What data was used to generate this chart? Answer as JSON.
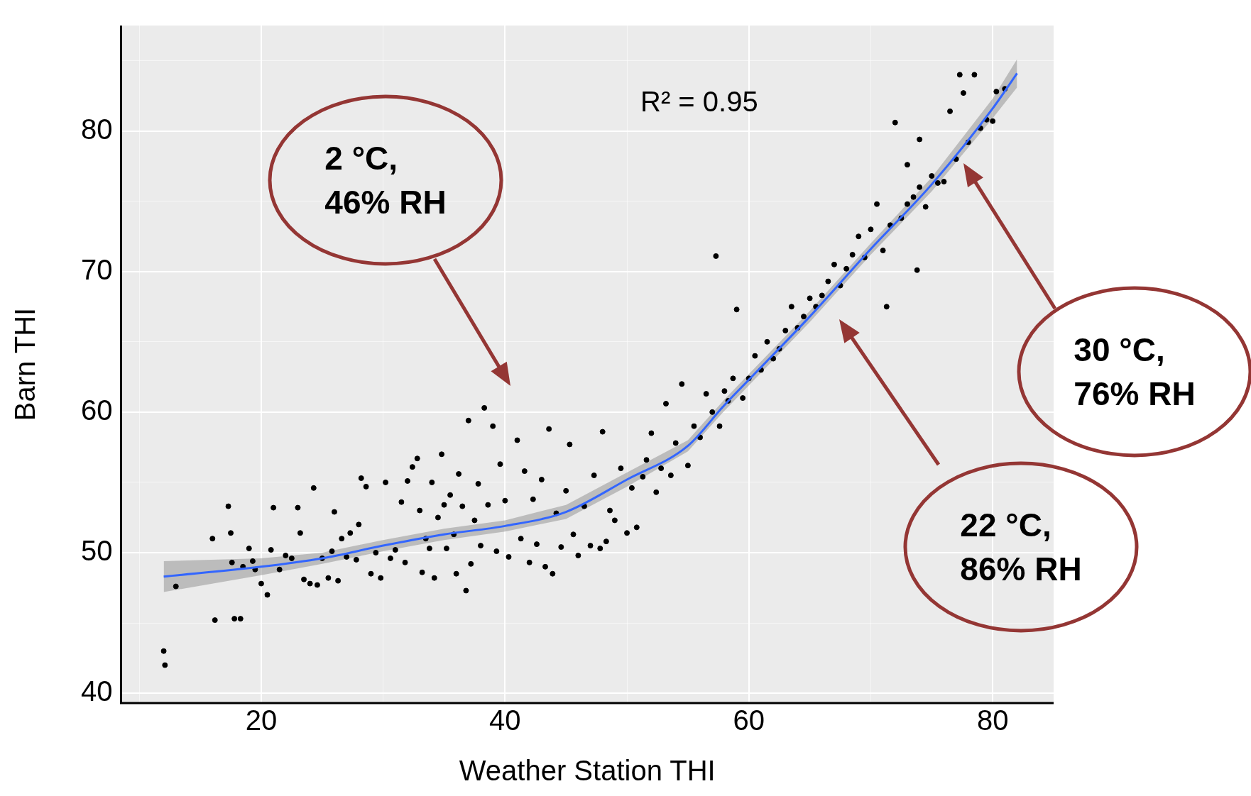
{
  "chart_data": {
    "type": "scatter",
    "xlabel": "Weather Station THI",
    "ylabel": "Barn THI",
    "xlim": [
      8.5,
      85
    ],
    "ylim": [
      39.3,
      87.5
    ],
    "xticks": [
      {
        "value": 10,
        "label": null
      },
      20,
      {
        "value": 30,
        "label": null
      },
      40,
      {
        "value": 50,
        "label": null
      },
      60,
      {
        "value": 70,
        "label": null
      },
      80
    ],
    "yticks": [
      40,
      {
        "value": 45,
        "label": null
      },
      50,
      {
        "value": 55,
        "label": null
      },
      60,
      {
        "value": 65,
        "label": null
      },
      70,
      {
        "value": 75,
        "label": null
      },
      80,
      {
        "value": 85,
        "label": null
      }
    ],
    "grid": true,
    "legend": false,
    "annotations": [
      "R² = 0.95",
      "2 °C,\n46% RH",
      "22 °C,\n86% RH",
      "30 °C,\n76% RH"
    ],
    "series": [
      {
        "marker": "circle",
        "color": "#000000",
        "x": [
          12,
          12.1,
          13,
          16,
          16.2,
          17.3,
          17.5,
          17.6,
          17.8,
          18.3,
          18.5,
          19,
          19.3,
          19.5,
          20,
          20.5,
          20.8,
          21,
          21.5,
          22,
          22.5,
          23,
          23.2,
          23.5,
          24,
          24.3,
          24.6,
          25,
          25.5,
          25.8,
          26,
          26.3,
          26.6,
          27,
          27.3,
          27.8,
          28,
          28.2,
          28.6,
          29,
          29.4,
          29.8,
          30.2,
          30.6,
          31,
          31.5,
          31.8,
          32,
          32.4,
          32.8,
          33,
          33.2,
          33.5,
          33.8,
          34,
          34.2,
          34.5,
          34.8,
          35,
          35.2,
          35.5,
          35.8,
          36,
          36.2,
          36.5,
          36.8,
          37,
          37.2,
          37.5,
          37.8,
          38,
          38.3,
          38.6,
          39,
          39.3,
          39.6,
          40,
          40.3,
          41,
          41.3,
          41.6,
          42,
          42.3,
          42.6,
          43,
          43.3,
          43.6,
          43.9,
          44.2,
          44.6,
          45,
          45.3,
          45.6,
          46,
          46.5,
          47,
          47.3,
          47.8,
          48,
          48.3,
          48.6,
          49,
          49.5,
          50,
          50.4,
          50.8,
          51.3,
          51.6,
          52,
          52.4,
          52.8,
          53.2,
          53.6,
          54,
          54.5,
          55,
          55.5,
          56,
          56.5,
          57,
          57.3,
          57.6,
          58,
          58.3,
          58.7,
          59,
          59.5,
          60,
          60.5,
          61,
          61.5,
          62,
          62.5,
          63,
          63.5,
          64,
          64.5,
          65,
          65.5,
          66,
          66.5,
          67,
          67.5,
          68,
          68.5,
          69,
          69.5,
          70,
          70.5,
          71,
          71.3,
          71.6,
          72,
          72.5,
          73,
          73.5,
          73.8,
          74,
          74.5,
          75,
          75.5,
          76,
          76.5,
          77,
          77.3,
          77.6,
          78,
          78.5,
          79,
          79.5,
          80,
          80.3,
          81,
          73,
          74
        ],
        "values": [
          43,
          42,
          47.6,
          51,
          45.2,
          53.3,
          51.4,
          49.3,
          45.3,
          45.3,
          49,
          50.3,
          49.4,
          48.8,
          47.8,
          47,
          50.2,
          53.2,
          48.8,
          49.8,
          49.6,
          53.2,
          51.4,
          48.1,
          47.8,
          54.6,
          47.7,
          49.6,
          48.2,
          50.1,
          52.9,
          48,
          51,
          49.7,
          51.4,
          49.5,
          52,
          55.3,
          54.7,
          48.5,
          50,
          48.2,
          55,
          49.6,
          50.2,
          53.6,
          49.3,
          55.1,
          56.1,
          56.7,
          53,
          48.6,
          51,
          50.3,
          55,
          48.2,
          52.5,
          57,
          53.4,
          50.3,
          54.1,
          51.3,
          48.5,
          55.6,
          53.3,
          47.3,
          59.4,
          49.2,
          52.3,
          54.9,
          50.5,
          60.3,
          53.4,
          59,
          50.1,
          56.3,
          53.7,
          49.7,
          58,
          51,
          55.8,
          49.3,
          53.8,
          50.6,
          55.2,
          49,
          58.8,
          48.5,
          52.8,
          50.4,
          54.4,
          57.7,
          51.3,
          49.8,
          53.3,
          50.5,
          55.5,
          50.3,
          58.6,
          50.8,
          53,
          52.3,
          56,
          51.4,
          54.6,
          51.8,
          55.4,
          56.6,
          58.5,
          54.3,
          56,
          60.6,
          55.5,
          57.8,
          62,
          56.2,
          59,
          58.2,
          61.3,
          60,
          71.1,
          59,
          61.5,
          60.8,
          62.4,
          67.3,
          61,
          62.4,
          64,
          63,
          65,
          63.8,
          64.5,
          65.8,
          67.5,
          66,
          66.8,
          68.1,
          67.5,
          68.3,
          69.3,
          70.5,
          69,
          70.2,
          71.2,
          72.5,
          71,
          73,
          74.8,
          71.5,
          67.5,
          73.3,
          80.6,
          73.8,
          74.8,
          75.3,
          70.1,
          76,
          74.6,
          76.8,
          76.3,
          76.4,
          81.4,
          78,
          84,
          82.7,
          79.2,
          84,
          80.2,
          80.8,
          80.7,
          82.8,
          83,
          77.6,
          79.4
        ]
      },
      {
        "type": "line",
        "color": "#3366ff",
        "x": [
          12,
          20,
          25,
          30,
          35,
          40,
          45,
          50,
          55,
          58,
          60,
          65,
          70,
          75,
          80,
          82
        ],
        "values": [
          48.3,
          49,
          49.6,
          50.5,
          51.3,
          51.9,
          52.9,
          55.2,
          57.6,
          60.5,
          62.3,
          66.8,
          71.6,
          76.2,
          81.6,
          84.1
        ],
        "lower": [
          47.2,
          48.4,
          49.2,
          50.1,
          50.9,
          51.5,
          52.4,
          54.7,
          57.2,
          60.1,
          61.9,
          66.4,
          71.2,
          75.7,
          80.9,
          83.1
        ],
        "upper": [
          49.4,
          49.6,
          50,
          50.9,
          51.7,
          52.3,
          53.4,
          55.7,
          58,
          60.9,
          62.7,
          67.2,
          72,
          76.7,
          82.3,
          85.1
        ]
      }
    ]
  }
}
